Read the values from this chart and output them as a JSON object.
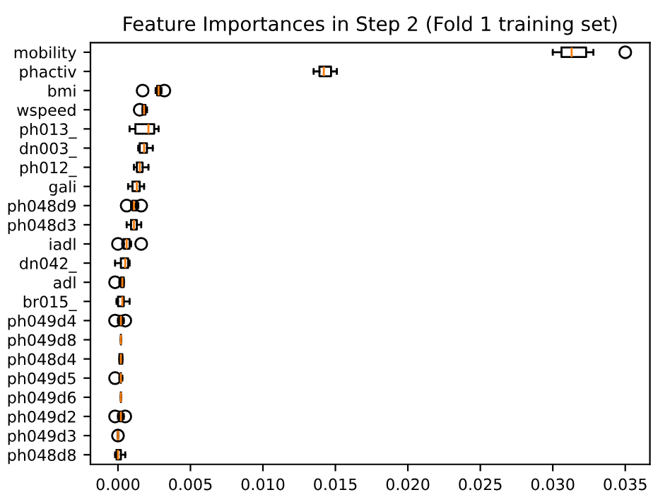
{
  "chart_data": {
    "type": "box",
    "orientation": "horizontal",
    "title": "Feature Importances in Step 2 (Fold 1 training set)",
    "categories": [
      "mobility",
      "phactiv",
      "bmi",
      "wspeed",
      "ph013_",
      "dn003_",
      "ph012_",
      "gali",
      "ph048d9",
      "ph048d3",
      "iadl",
      "dn042_",
      "adl",
      "br015_",
      "ph049d4",
      "ph049d8",
      "ph048d4",
      "ph049d5",
      "ph049d6",
      "ph049d2",
      "ph049d3",
      "ph048d8"
    ],
    "boxes": [
      {
        "low": 0.03,
        "q1": 0.0306,
        "median": 0.0313,
        "q3": 0.0323,
        "high": 0.0328,
        "outliers": [
          0.035
        ]
      },
      {
        "low": 0.0135,
        "q1": 0.0139,
        "median": 0.0142,
        "q3": 0.0147,
        "high": 0.0151
      },
      {
        "low": 0.0026,
        "q1": 0.0027,
        "median": 0.0028,
        "q3": 0.0029,
        "high": 0.003,
        "outliers": [
          0.0017,
          0.0032
        ]
      },
      {
        "low": 0.0017,
        "q1": 0.0017,
        "median": 0.0018,
        "q3": 0.0019,
        "high": 0.002,
        "outliers": [
          0.0015
        ]
      },
      {
        "low": 0.0008,
        "q1": 0.0012,
        "median": 0.0021,
        "q3": 0.0025,
        "high": 0.0028
      },
      {
        "low": 0.0014,
        "q1": 0.0015,
        "median": 0.0018,
        "q3": 0.002,
        "high": 0.0024
      },
      {
        "low": 0.0011,
        "q1": 0.0013,
        "median": 0.0015,
        "q3": 0.0017,
        "high": 0.0021
      },
      {
        "low": 0.0007,
        "q1": 0.001,
        "median": 0.0013,
        "q3": 0.0015,
        "high": 0.0018
      },
      {
        "low": 0.0009,
        "q1": 0.001,
        "median": 0.0011,
        "q3": 0.0013,
        "high": 0.0014,
        "outliers": [
          0.0006,
          0.0016
        ]
      },
      {
        "low": 0.0006,
        "q1": 0.0009,
        "median": 0.0011,
        "q3": 0.0013,
        "high": 0.0016
      },
      {
        "low": 0.0003,
        "q1": 0.0004,
        "median": 0.0006,
        "q3": 0.0008,
        "high": 0.0009,
        "outliers": [
          0.0,
          0.0016
        ]
      },
      {
        "low": -0.0002,
        "q1": 0.0002,
        "median": 0.0005,
        "q3": 0.0007,
        "high": 0.0008
      },
      {
        "low": 0.0001,
        "q1": 0.0002,
        "median": 0.0003,
        "q3": 0.0004,
        "high": 0.0004,
        "outliers": [
          -0.0002
        ]
      },
      {
        "low": -0.0001,
        "q1": 0.0,
        "median": 0.0003,
        "q3": 0.0004,
        "high": 0.0008
      },
      {
        "low": 0.0,
        "q1": 0.0001,
        "median": 0.0002,
        "q3": 0.0003,
        "high": 0.0004,
        "outliers": [
          -0.0002,
          0.0005
        ]
      },
      {
        "low": 0.0002,
        "q1": 0.0002,
        "median": 0.0002,
        "q3": 0.0002,
        "high": 0.0002
      },
      {
        "low": 0.0001,
        "q1": 0.0001,
        "median": 0.0002,
        "q3": 0.0003,
        "high": 0.0003
      },
      {
        "low": 0.0001,
        "q1": 0.0002,
        "median": 0.0002,
        "q3": 0.0002,
        "high": 0.0003,
        "outliers": [
          -0.0002
        ]
      },
      {
        "low": 0.0002,
        "q1": 0.0002,
        "median": 0.0002,
        "q3": 0.0002,
        "high": 0.0002
      },
      {
        "low": 0.0,
        "q1": 0.0001,
        "median": 0.0002,
        "q3": 0.0003,
        "high": 0.0004,
        "outliers": [
          -0.0002,
          0.0005
        ]
      },
      {
        "low": 0.0,
        "q1": 0.0,
        "median": 0.0,
        "q3": 0.0,
        "high": 0.0,
        "outliers": [
          0.0
        ]
      },
      {
        "low": -0.0002,
        "q1": -0.0001,
        "median": 0.0,
        "q3": 0.0002,
        "high": 0.0005
      }
    ],
    "xlim": [
      -0.0019,
      0.0367
    ],
    "xticks": [
      {
        "value": 0.0,
        "label": "0.000"
      },
      {
        "value": 0.005,
        "label": "0.005"
      },
      {
        "value": 0.01,
        "label": "0.010"
      },
      {
        "value": 0.015,
        "label": "0.015"
      },
      {
        "value": 0.02,
        "label": "0.020"
      },
      {
        "value": 0.025,
        "label": "0.025"
      },
      {
        "value": 0.03,
        "label": "0.030"
      },
      {
        "value": 0.035,
        "label": "0.035"
      }
    ],
    "grid": false,
    "marker": "circle"
  }
}
